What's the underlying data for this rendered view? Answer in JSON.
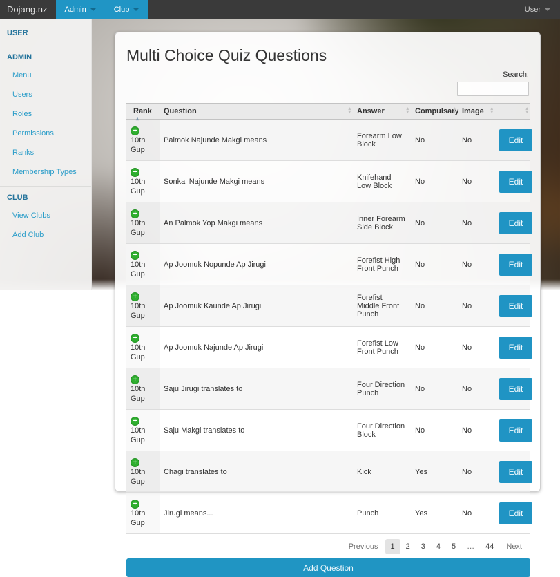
{
  "navbar": {
    "brand": "Dojang.nz",
    "items": [
      {
        "label": "Admin"
      },
      {
        "label": "Club"
      }
    ],
    "user_label": "User"
  },
  "sidebar": {
    "sections": [
      {
        "heading": "USER",
        "items": []
      },
      {
        "heading": "ADMIN",
        "items": [
          "Menu",
          "Users",
          "Roles",
          "Permissions",
          "Ranks",
          "Membership Types"
        ]
      },
      {
        "heading": "CLUB",
        "items": [
          "View Clubs",
          "Add Club"
        ]
      }
    ]
  },
  "main": {
    "title": "Multi Choice Quiz Questions",
    "search": {
      "label": "Search:",
      "value": ""
    },
    "table": {
      "columns": [
        "Rank",
        "Question",
        "Answer",
        "Compulsary",
        "Image",
        ""
      ],
      "sorted_column": "Rank",
      "sort_direction": "ascending",
      "row_action_label": "Edit",
      "rows": [
        {
          "rank": "10th Gup",
          "question": "Palmok Najunde Makgi means",
          "answer": "Forearm Low Block",
          "compulsary": "No",
          "image": "No"
        },
        {
          "rank": "10th Gup",
          "question": "Sonkal Najunde Makgi means",
          "answer": "Knifehand Low Block",
          "compulsary": "No",
          "image": "No"
        },
        {
          "rank": "10th Gup",
          "question": "An Palmok Yop Makgi means",
          "answer": "Inner Forearm Side Block",
          "compulsary": "No",
          "image": "No"
        },
        {
          "rank": "10th Gup",
          "question": "Ap Joomuk Nopunde Ap Jirugi",
          "answer": "Forefist High Front Punch",
          "compulsary": "No",
          "image": "No"
        },
        {
          "rank": "10th Gup",
          "question": "Ap Joomuk Kaunde Ap Jirugi",
          "answer": "Forefist Middle Front Punch",
          "compulsary": "No",
          "image": "No"
        },
        {
          "rank": "10th Gup",
          "question": "Ap Joomuk Najunde Ap Jirugi",
          "answer": "Forefist Low Front Punch",
          "compulsary": "No",
          "image": "No"
        },
        {
          "rank": "10th Gup",
          "question": "Saju Jirugi translates to",
          "answer": "Four Direction Punch",
          "compulsary": "No",
          "image": "No"
        },
        {
          "rank": "10th Gup",
          "question": "Saju Makgi translates to",
          "answer": "Four Direction Block",
          "compulsary": "No",
          "image": "No"
        },
        {
          "rank": "10th Gup",
          "question": "Chagi translates to",
          "answer": "Kick",
          "compulsary": "Yes",
          "image": "No"
        },
        {
          "rank": "10th Gup",
          "question": "Jirugi means...",
          "answer": "Punch",
          "compulsary": "Yes",
          "image": "No"
        }
      ]
    },
    "pagination": {
      "previous": "Previous",
      "pages": [
        "1",
        "2",
        "3",
        "4",
        "5",
        "…",
        "44"
      ],
      "current": "1",
      "next": "Next"
    },
    "add_button_label": "Add Question"
  },
  "icons": {
    "expand_row": "plus-circle-icon",
    "sort": "sort-arrows-icon",
    "dropdown": "chevron-down-icon"
  },
  "colors": {
    "navbar_bg": "#3a3a3a",
    "accent_blue": "#2095c4",
    "link_blue": "#2b9dc9",
    "heading_teal": "#23739b",
    "expand_green": "#2fae2f",
    "stripe_gray": "#f1f1f1"
  }
}
